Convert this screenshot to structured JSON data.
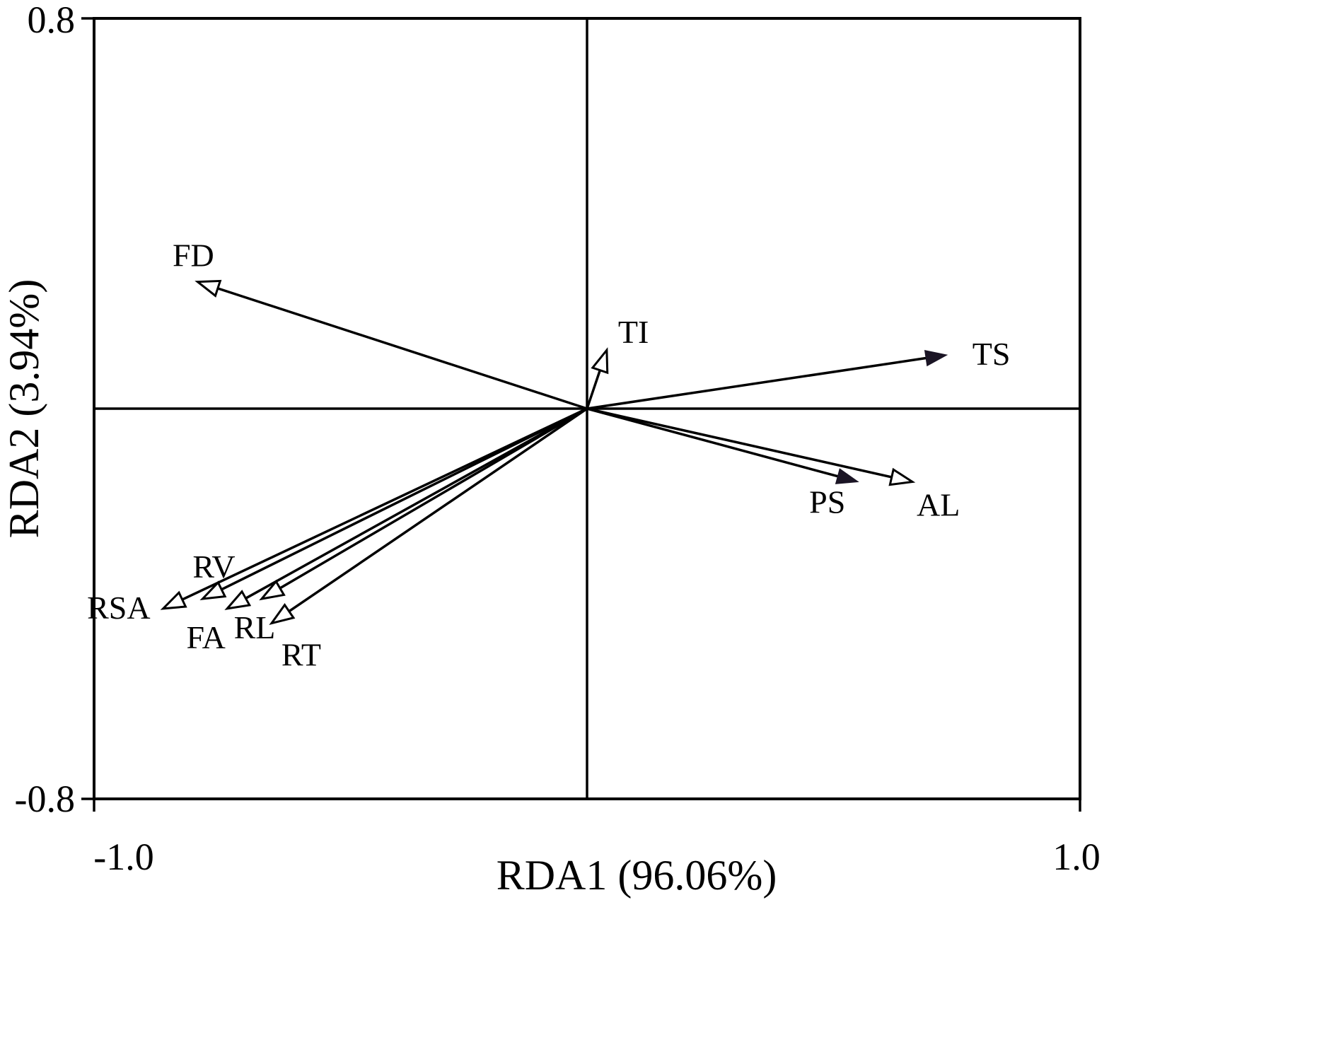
{
  "chart_data": {
    "type": "scatter",
    "subtype": "RDA ordination biplot with variable vectors radiating from origin",
    "title": "",
    "xlabel": "RDA1 (96.06%)",
    "ylabel": "RDA2 (3.94%)",
    "xlim": [
      -1.0,
      1.0
    ],
    "ylim": [
      -0.8,
      0.8
    ],
    "x_ticks": [
      -1.0,
      1.0
    ],
    "y_ticks": [
      0.8,
      -0.8
    ],
    "x_tick_labels": [
      "-1.0",
      "1.0"
    ],
    "y_tick_labels": [
      "0.8",
      "-0.8"
    ],
    "grid": false,
    "origin_cross": true,
    "legend": "none",
    "vectors": [
      {
        "label": "FD",
        "x": -0.79,
        "y": 0.26,
        "head": "open",
        "label_dx": -6,
        "label_dy": -22,
        "label_anchor": "middle"
      },
      {
        "label": "TI",
        "x": 0.04,
        "y": 0.12,
        "head": "open",
        "label_dx": 16,
        "label_dy": -10,
        "label_anchor": "start"
      },
      {
        "label": "TS",
        "x": 0.73,
        "y": 0.11,
        "head": "filled",
        "label_dx": 36,
        "label_dy": 14,
        "label_anchor": "start"
      },
      {
        "label": "PS",
        "x": 0.55,
        "y": -0.15,
        "head": "filled",
        "label_dx": -18,
        "label_dy": 44,
        "label_anchor": "end"
      },
      {
        "label": "AL",
        "x": 0.66,
        "y": -0.15,
        "head": "open",
        "label_dx": 6,
        "label_dy": 48,
        "label_anchor": "start"
      },
      {
        "label": "RV",
        "x": -0.78,
        "y": -0.39,
        "head": "open",
        "label_dx": -14,
        "label_dy": -30,
        "label_anchor": "start"
      },
      {
        "label": "RSA",
        "x": -0.86,
        "y": -0.41,
        "head": "open",
        "label_dx": -18,
        "label_dy": 14,
        "label_anchor": "end"
      },
      {
        "label": "FA",
        "x": -0.73,
        "y": -0.41,
        "head": "open",
        "label_dx": -30,
        "label_dy": 56,
        "label_anchor": "middle"
      },
      {
        "label": "RL",
        "x": -0.66,
        "y": -0.39,
        "head": "open",
        "label_dx": -10,
        "label_dy": 56,
        "label_anchor": "middle"
      },
      {
        "label": "RT",
        "x": -0.64,
        "y": -0.44,
        "head": "open",
        "label_dx": 14,
        "label_dy": 60,
        "label_anchor": "start"
      }
    ]
  },
  "colors": {
    "line": "#000000",
    "open_arrowhead_fill": "#ffffff",
    "filled_arrowhead_fill": "#1b1525",
    "background": "#ffffff"
  }
}
